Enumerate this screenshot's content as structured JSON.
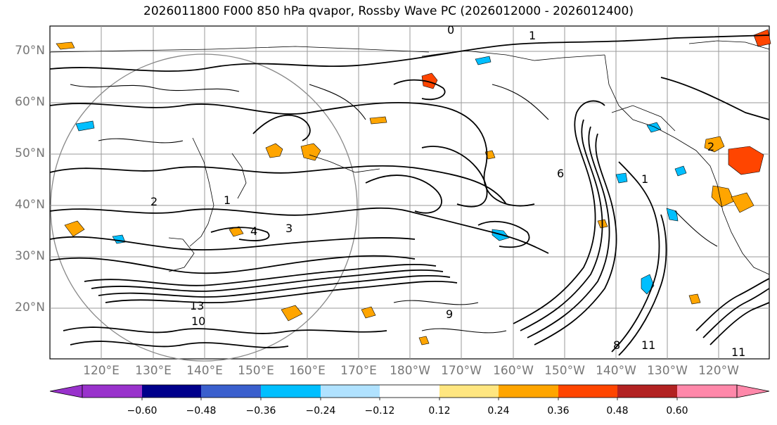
{
  "title": "2026011800 F000 850 hPa qvapor, Rossby Wave PC (2026012000 - 2026012400)",
  "lat_labels": [
    "70°N",
    "60°N",
    "50°N",
    "40°N",
    "30°N",
    "20°N"
  ],
  "lon_labels": [
    "120°E",
    "130°E",
    "140°E",
    "150°E",
    "160°E",
    "170°E",
    "180°W",
    "170°W",
    "160°W",
    "150°W",
    "140°W",
    "130°W",
    "120°W"
  ],
  "contour_labels": [
    "1",
    "0",
    "2",
    "4",
    "3",
    "9",
    "11",
    "13",
    "8",
    "10",
    "6"
  ],
  "colorbar": {
    "ticks": [
      "−0.60",
      "−0.48",
      "−0.36",
      "−0.24",
      "−0.12",
      "0.12",
      "0.24",
      "0.36",
      "0.48",
      "0.60"
    ],
    "colors": [
      "#9932cc",
      "#00008b",
      "#3a5fcd",
      "#00bfff",
      "#b0e2ff",
      "#ffffff",
      "#ffe680",
      "#ffa500",
      "#ff4500",
      "#b22222",
      "#ff88aa",
      "#ff88aa"
    ],
    "under_color": "#9932cc",
    "over_color": "#ff88aa"
  },
  "colors": {
    "contour": "#000000",
    "grid": "#999999",
    "coast": "#000000",
    "axis_label": "#777777"
  }
}
